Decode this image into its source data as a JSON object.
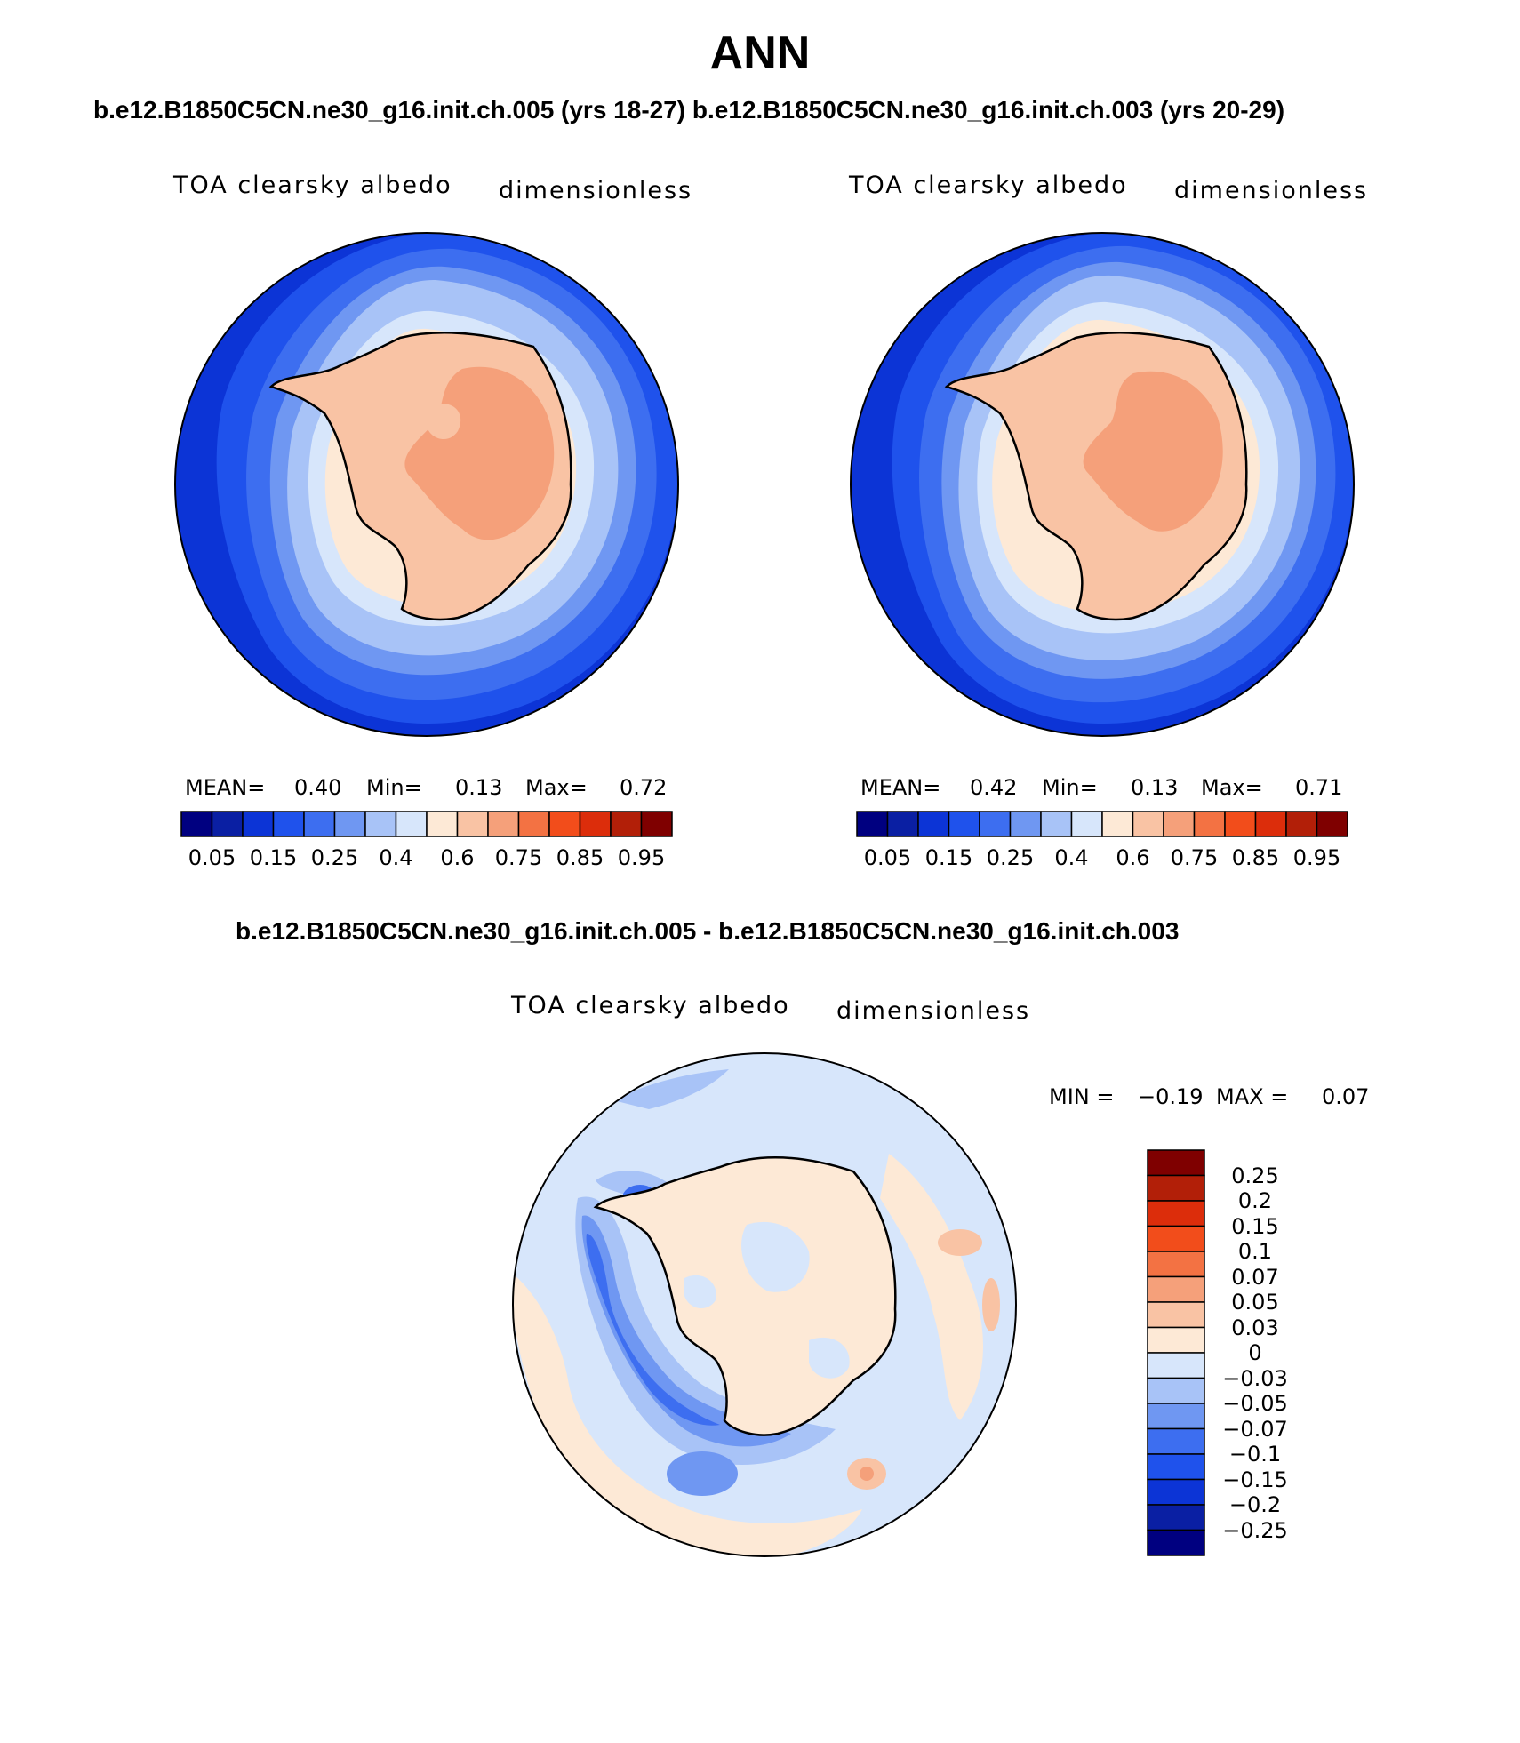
{
  "title": "ANN",
  "subtitle_top": "b.e12.B1850C5CN.ne30_g16.init.ch.005 (yrs 18-27) b.e12.B1850C5CN.ne30_g16.init.ch.003 (yrs 20-29)",
  "subtitle_diff": "b.e12.B1850C5CN.ne30_g16.init.ch.005 - b.e12.B1850C5CN.ne30_g16.init.ch.003",
  "panels": [
    {
      "variable": "TOA clearsky albedo",
      "units": "dimensionless",
      "mean_label": "MEAN=",
      "mean": "0.40",
      "min_label": "Min=",
      "min": "0.13",
      "max_label": "Max=",
      "max": "0.72"
    },
    {
      "variable": "TOA clearsky albedo",
      "units": "dimensionless",
      "mean_label": "MEAN=",
      "mean": "0.42",
      "min_label": "Min=",
      "min": "0.13",
      "max_label": "Max=",
      "max": "0.71"
    }
  ],
  "diff_panel": {
    "variable": "TOA clearsky albedo",
    "units": "dimensionless",
    "min_label": "MIN =",
    "min": "−0.19",
    "max_label": "MAX =",
    "max": "0.07"
  },
  "colorbar_main": {
    "colors": [
      "#000080",
      "#0a1fa3",
      "#0c34d6",
      "#1f52ec",
      "#3d6ef0",
      "#6f97f2",
      "#a8c3f7",
      "#d7e6fb",
      "#fde9d6",
      "#f9c3a4",
      "#f5a07a",
      "#f37243",
      "#f24d1b",
      "#dc2d0b",
      "#b21f08",
      "#7f0000"
    ],
    "labels": [
      "0.05",
      "0.15",
      "0.25",
      "0.4",
      "0.6",
      "0.75",
      "0.85",
      "0.95"
    ]
  },
  "colorbar_diff": {
    "colors": [
      "#000080",
      "#0a1fa3",
      "#0c34d6",
      "#1f52ec",
      "#3d6ef0",
      "#6f97f2",
      "#a8c3f7",
      "#d7e6fb",
      "#fde9d6",
      "#f9c3a4",
      "#f5a07a",
      "#f37243",
      "#f24d1b",
      "#dc2d0b",
      "#b21f08",
      "#7f0000"
    ],
    "labels": [
      "0.25",
      "0.2",
      "0.15",
      "0.1",
      "0.07",
      "0.05",
      "0.03",
      "0",
      "−0.03",
      "−0.05",
      "−0.07",
      "−0.1",
      "−0.15",
      "−0.2",
      "−0.25"
    ]
  }
}
